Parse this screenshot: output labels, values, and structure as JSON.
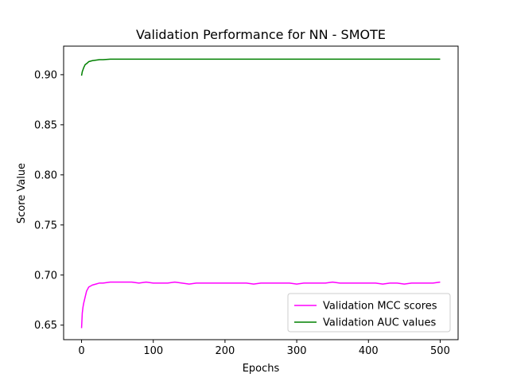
{
  "chart_data": {
    "type": "line",
    "title": "Validation Performance for NN - SMOTE",
    "xlabel": "Epochs",
    "ylabel": "Score Value",
    "xlim": [
      -25,
      525
    ],
    "ylim": [
      0.6355,
      0.9285
    ],
    "xticks": [
      0,
      100,
      200,
      300,
      400,
      500
    ],
    "xtick_labels": [
      "0",
      "100",
      "200",
      "300",
      "400",
      "500"
    ],
    "yticks": [
      0.65,
      0.7,
      0.75,
      0.8,
      0.85,
      0.9
    ],
    "ytick_labels": [
      "0.65",
      "0.70",
      "0.75",
      "0.80",
      "0.85",
      "0.90"
    ],
    "grid": false,
    "legend_position": "lower-right",
    "series": [
      {
        "name": "Validation MCC scores",
        "color": "#ff00ff",
        "x": [
          0,
          1,
          2,
          3,
          5,
          7,
          10,
          15,
          20,
          25,
          30,
          40,
          50,
          60,
          70,
          80,
          90,
          100,
          110,
          120,
          130,
          140,
          150,
          160,
          170,
          180,
          190,
          200,
          210,
          220,
          230,
          240,
          250,
          260,
          270,
          280,
          290,
          300,
          310,
          320,
          330,
          340,
          350,
          360,
          370,
          380,
          390,
          400,
          410,
          420,
          430,
          440,
          450,
          460,
          470,
          480,
          490,
          500
        ],
        "values": [
          0.647,
          0.662,
          0.668,
          0.672,
          0.678,
          0.684,
          0.688,
          0.69,
          0.691,
          0.692,
          0.692,
          0.693,
          0.693,
          0.693,
          0.693,
          0.692,
          0.693,
          0.692,
          0.692,
          0.692,
          0.693,
          0.692,
          0.691,
          0.692,
          0.692,
          0.692,
          0.692,
          0.692,
          0.692,
          0.692,
          0.692,
          0.691,
          0.692,
          0.692,
          0.692,
          0.692,
          0.692,
          0.691,
          0.692,
          0.692,
          0.692,
          0.692,
          0.693,
          0.692,
          0.692,
          0.692,
          0.692,
          0.692,
          0.692,
          0.691,
          0.692,
          0.692,
          0.691,
          0.692,
          0.692,
          0.692,
          0.692,
          0.693
        ]
      },
      {
        "name": "Validation AUC values",
        "color": "#008000",
        "x": [
          0,
          1,
          2,
          3,
          5,
          7,
          10,
          15,
          20,
          25,
          30,
          40,
          50,
          60,
          70,
          80,
          90,
          100,
          120,
          140,
          160,
          180,
          200,
          220,
          240,
          260,
          280,
          300,
          320,
          340,
          360,
          380,
          400,
          420,
          440,
          460,
          480,
          500
        ],
        "values": [
          0.899,
          0.903,
          0.905,
          0.907,
          0.91,
          0.911,
          0.913,
          0.914,
          0.9145,
          0.915,
          0.915,
          0.9155,
          0.9155,
          0.9155,
          0.9155,
          0.9155,
          0.9155,
          0.9155,
          0.9155,
          0.9155,
          0.9155,
          0.9155,
          0.9155,
          0.9155,
          0.9155,
          0.9155,
          0.9155,
          0.9155,
          0.9155,
          0.9155,
          0.9155,
          0.9155,
          0.9155,
          0.9155,
          0.9155,
          0.9155,
          0.9155,
          0.9155
        ]
      }
    ]
  }
}
